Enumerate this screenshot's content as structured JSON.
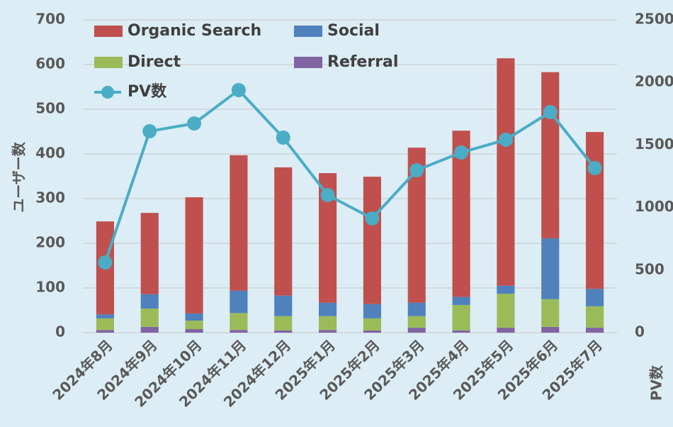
{
  "chart_data": {
    "type": "bar",
    "categories": [
      "2024年8月",
      "2024年9月",
      "2024年10月",
      "2024年11月",
      "2024年12月",
      "2025年1月",
      "2025年2月",
      "2025年3月",
      "2025年4月",
      "2025年5月",
      "2025年6月",
      "2025年7月"
    ],
    "y_label": "ユーザー数",
    "y2_label": "PV数",
    "ylim": [
      0,
      700
    ],
    "yticks": [
      0,
      100,
      200,
      300,
      400,
      500,
      600,
      700
    ],
    "y2lim": [
      0,
      2500
    ],
    "y2ticks": [
      0,
      500,
      1000,
      1500,
      2000,
      2500
    ],
    "grid": true,
    "stacked": true,
    "legend": "top-left",
    "series": [
      {
        "name": "Organic Search",
        "color": "#c0504d",
        "values": [
          208,
          182,
          260,
          303,
          287,
          290,
          285,
          347,
          372,
          509,
          372,
          351
        ]
      },
      {
        "name": "Social",
        "color": "#4f81bd",
        "values": [
          9,
          32,
          16,
          50,
          46,
          30,
          32,
          30,
          18,
          18,
          136,
          39
        ]
      },
      {
        "name": "Direct",
        "color": "#9bbb59",
        "values": [
          26,
          41,
          19,
          38,
          32,
          31,
          27,
          26,
          57,
          76,
          62,
          48
        ]
      },
      {
        "name": "Referral",
        "color": "#8064a2",
        "values": [
          6,
          13,
          8,
          6,
          5,
          6,
          5,
          11,
          5,
          11,
          13,
          11
        ]
      },
      {
        "name": "PV数",
        "type": "line",
        "axis": "y2",
        "color": "#4bacc6",
        "values": [
          561,
          1610,
          1672,
          1939,
          1559,
          1100,
          913,
          1298,
          1440,
          1542,
          1763,
          1315
        ]
      }
    ]
  }
}
